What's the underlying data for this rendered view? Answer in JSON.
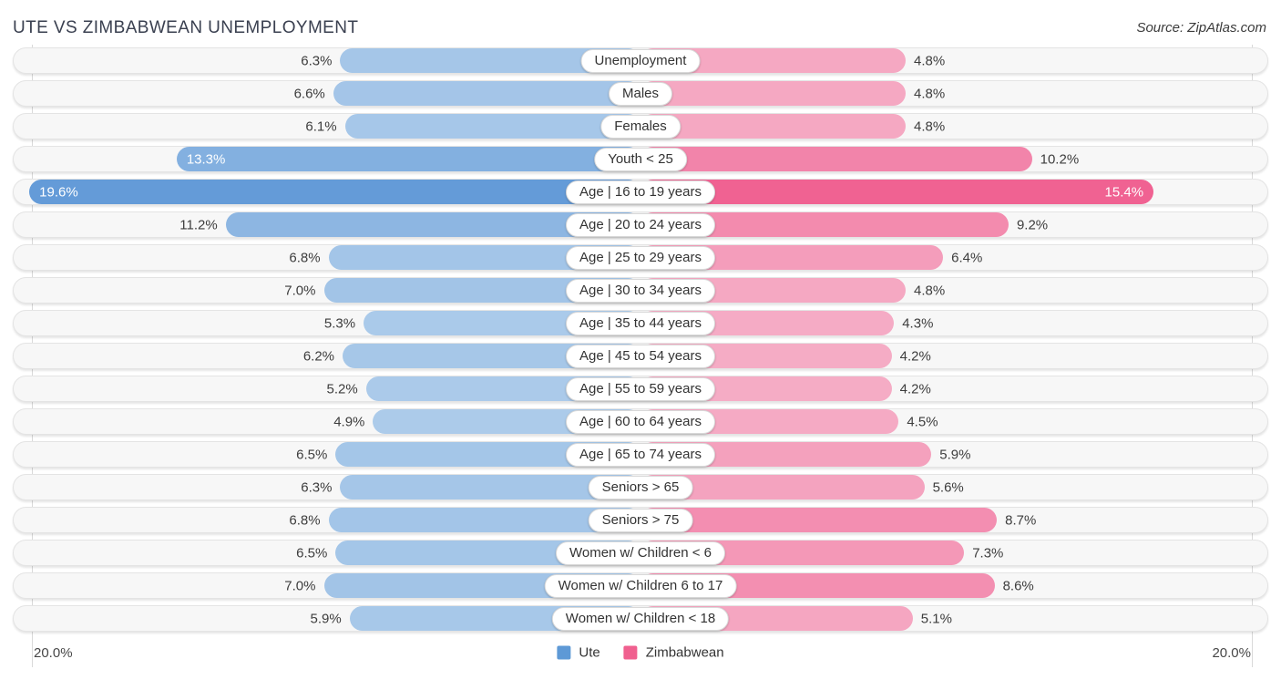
{
  "header": {
    "title": "UTE VS ZIMBABWEAN UNEMPLOYMENT",
    "source": "Source: ZipAtlas.com"
  },
  "axis": {
    "left_label": "20.0%",
    "right_label": "20.0%",
    "max_percent": 20.0
  },
  "legend": [
    {
      "label": "Ute",
      "color": "#5e99d6"
    },
    {
      "label": "Zimbabwean",
      "color": "#f0608f"
    }
  ],
  "chart_data": {
    "type": "bar",
    "variant": "diverging-horizontal-pyramid",
    "title": "UTE VS ZIMBABWEAN UNEMPLOYMENT",
    "xlim": [
      0,
      20
    ],
    "x_tick_label": "20.0%",
    "grid": "edge-gridlines-only",
    "legend_position": "bottom-center",
    "categories": [
      "Unemployment",
      "Males",
      "Females",
      "Youth < 25",
      "Age | 16 to 19 years",
      "Age | 20 to 24 years",
      "Age | 25 to 29 years",
      "Age | 30 to 34 years",
      "Age | 35 to 44 years",
      "Age | 45 to 54 years",
      "Age | 55 to 59 years",
      "Age | 60 to 64 years",
      "Age | 65 to 74 years",
      "Seniors > 65",
      "Seniors > 75",
      "Women w/ Children < 6",
      "Women w/ Children 6 to 17",
      "Women w/ Children < 18"
    ],
    "series": [
      {
        "name": "Ute",
        "side": "left",
        "color_light": "#accbea",
        "color_dark": "#649bd8",
        "values": [
          6.3,
          6.6,
          6.1,
          13.3,
          19.6,
          11.2,
          6.8,
          7.0,
          5.3,
          6.2,
          5.2,
          4.9,
          6.5,
          6.3,
          6.8,
          6.5,
          7.0,
          5.9
        ]
      },
      {
        "name": "Zimbabwean",
        "side": "right",
        "color_light": "#f5acc5",
        "color_dark": "#f06292",
        "values": [
          4.8,
          4.8,
          4.8,
          10.2,
          15.4,
          9.2,
          6.4,
          4.8,
          4.3,
          4.2,
          4.2,
          4.5,
          5.9,
          5.6,
          8.7,
          7.3,
          8.6,
          5.1
        ]
      }
    ]
  }
}
